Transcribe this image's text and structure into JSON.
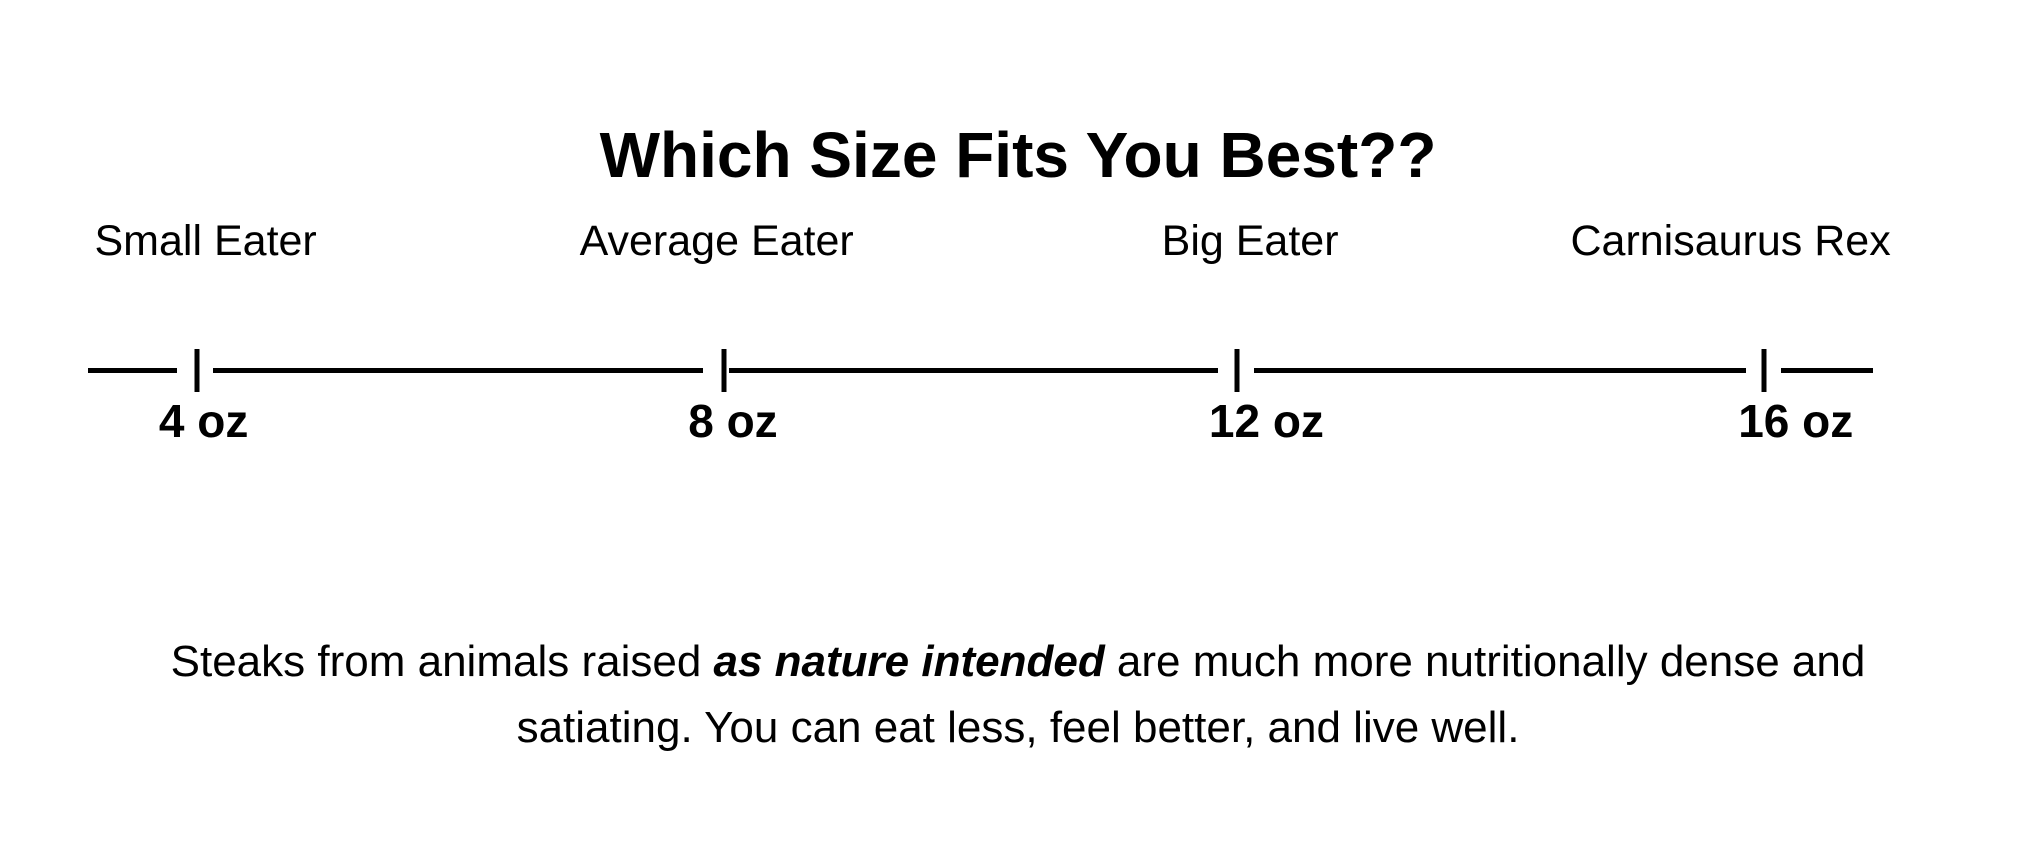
{
  "title": "Which Size Fits You Best??",
  "scale": {
    "categories": [
      {
        "label": "Small Eater",
        "size": "4 oz"
      },
      {
        "label": "Average Eater",
        "size": "8 oz"
      },
      {
        "label": "Big Eater",
        "size": "12 oz"
      },
      {
        "label": "Carnisaurus Rex",
        "size": "16 oz"
      }
    ],
    "line_color": "#000000"
  },
  "description": {
    "lead": "Steaks from animals raised ",
    "emphasis": "as nature intended",
    "rest": " are much more nutritionally dense and satiating. You can eat less, feel better, and live well."
  }
}
